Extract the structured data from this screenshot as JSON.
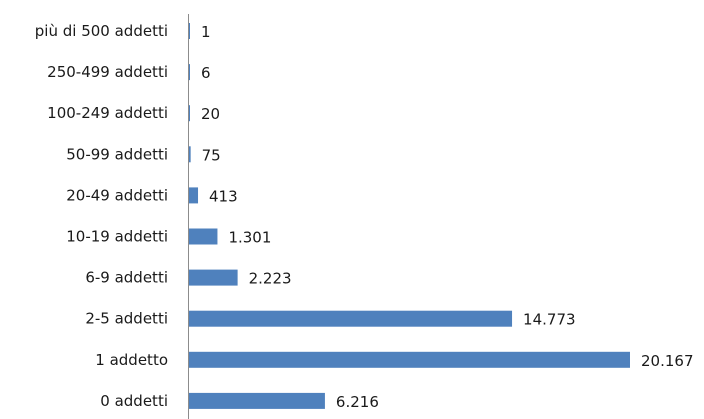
{
  "chart_data": {
    "type": "bar",
    "orientation": "horizontal",
    "title": "",
    "xlabel": "",
    "ylabel": "",
    "categories": [
      "più di 500 addetti",
      "250-499 addetti",
      "100-249 addetti",
      "50-99 addetti",
      "20-49 addetti",
      "10-19 addetti",
      "6-9 addetti",
      "2-5 addetti",
      "1 addetto",
      "0 addetti"
    ],
    "values": [
      1,
      6,
      20,
      75,
      413,
      1301,
      2223,
      14773,
      20167,
      6216
    ],
    "value_labels": [
      "1",
      "6",
      "20",
      "75",
      "413",
      "1.301",
      "2.223",
      "14.773",
      "20.167",
      "6.216"
    ],
    "xlim": [
      0,
      20167
    ],
    "grid": false,
    "legend": "none",
    "bar_color": "#4f81bd"
  }
}
